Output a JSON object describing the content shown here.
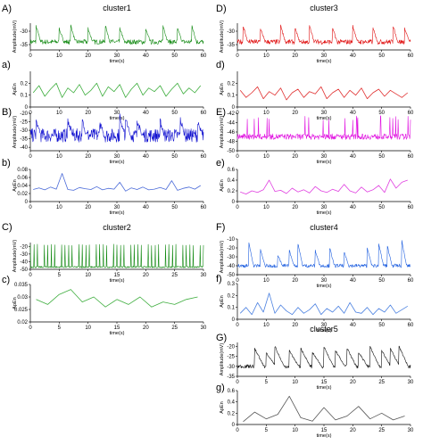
{
  "chart_data": [
    {
      "id": "A",
      "panel_label": "A)",
      "title": "cluster1",
      "type": "line",
      "ylabel": "Amplitude(mV)",
      "xlabel": "time(s)",
      "xlim": [
        0,
        60
      ],
      "xticks": [
        "0",
        "10",
        "20",
        "30",
        "40",
        "50",
        "60"
      ],
      "ylim": [
        -37,
        -27
      ],
      "yticks": [
        "-30",
        "-35"
      ],
      "series": [
        {
          "color": "#138a13",
          "signal": "bursts",
          "baseline": -34,
          "noise": 0.9,
          "spikes": [
            [
              2,
              -28
            ],
            [
              10,
              -29
            ],
            [
              14,
              -28
            ],
            [
              20,
              -29
            ],
            [
              26,
              -28
            ],
            [
              31,
              -29
            ],
            [
              40,
              -29
            ],
            [
              46,
              -28
            ],
            [
              51,
              -29
            ],
            [
              56,
              -28
            ]
          ]
        }
      ]
    },
    {
      "id": "a",
      "panel_label": "a)",
      "type": "line",
      "ylabel": "ApEn",
      "xlabel": "time(s)",
      "xlim": [
        0,
        60
      ],
      "xticks": [
        "0",
        "10",
        "20",
        "30",
        "40",
        "50",
        "60"
      ],
      "ylim": [
        0,
        0.3
      ],
      "yticks": [
        "0",
        "0.1",
        "0.2"
      ],
      "series": [
        {
          "color": "#3fae3f",
          "x": [
            1,
            3,
            5,
            7,
            9,
            11,
            13,
            15,
            17,
            19,
            21,
            23,
            25,
            27,
            29,
            31,
            33,
            35,
            37,
            39,
            41,
            43,
            45,
            47,
            49,
            51,
            53,
            55,
            57,
            59
          ],
          "values": [
            0.12,
            0.18,
            0.09,
            0.15,
            0.2,
            0.08,
            0.16,
            0.12,
            0.19,
            0.1,
            0.14,
            0.2,
            0.09,
            0.17,
            0.13,
            0.19,
            0.08,
            0.15,
            0.2,
            0.1,
            0.16,
            0.13,
            0.18,
            0.09,
            0.15,
            0.2,
            0.11,
            0.16,
            0.12,
            0.18
          ]
        }
      ]
    },
    {
      "id": "B",
      "panel_label": "B)",
      "title": "",
      "type": "line",
      "ylabel": "Amplitude(mV)",
      "xlabel": "time(s)",
      "xlim": [
        0,
        60
      ],
      "xticks": [
        "0",
        "10",
        "20",
        "30",
        "40",
        "50",
        "60"
      ],
      "ylim": [
        -42,
        -20
      ],
      "yticks": [
        "-20",
        "-25",
        "-30",
        "-35",
        "-40"
      ],
      "series": [
        {
          "color": "#1010d0",
          "signal": "bursts",
          "baseline": -33,
          "noise": 4,
          "spikes": [
            [
              2,
              -25
            ],
            [
              13,
              -24
            ],
            [
              18,
              -25
            ],
            [
              24,
              -26
            ],
            [
              31,
              -21
            ],
            [
              33,
              -23
            ],
            [
              37,
              -24
            ],
            [
              45,
              -25
            ],
            [
              52,
              -24
            ],
            [
              58,
              -26
            ]
          ]
        }
      ]
    },
    {
      "id": "b",
      "panel_label": "b)",
      "type": "line",
      "ylabel": "ApEn",
      "xlabel": "time(s)",
      "xlim": [
        0,
        60
      ],
      "xticks": [
        "0",
        "10",
        "20",
        "30",
        "40",
        "50",
        "60"
      ],
      "ylim": [
        0,
        0.08
      ],
      "yticks": [
        "0",
        "0.02",
        "0.04",
        "0.06",
        "0.08"
      ],
      "series": [
        {
          "color": "#4a6ad8",
          "x": [
            1,
            3,
            5,
            7,
            9,
            11,
            13,
            15,
            17,
            19,
            21,
            23,
            25,
            27,
            29,
            31,
            33,
            35,
            37,
            39,
            41,
            43,
            45,
            47,
            49,
            51,
            53,
            55,
            57,
            59
          ],
          "values": [
            0.03,
            0.034,
            0.029,
            0.036,
            0.031,
            0.07,
            0.03,
            0.028,
            0.035,
            0.032,
            0.03,
            0.037,
            0.029,
            0.033,
            0.031,
            0.048,
            0.026,
            0.034,
            0.03,
            0.036,
            0.029,
            0.031,
            0.035,
            0.03,
            0.052,
            0.028,
            0.033,
            0.036,
            0.031,
            0.04
          ]
        }
      ]
    },
    {
      "id": "C",
      "panel_label": "C)",
      "title": "cluster2",
      "type": "line",
      "ylabel": "Amplitude(mV)",
      "xlabel": "time(s)",
      "xlim": [
        0,
        30
      ],
      "xticks": [
        "0",
        "5",
        "10",
        "15",
        "20",
        "25",
        "30"
      ],
      "ylim": [
        -50,
        -15
      ],
      "yticks": [
        "-20",
        "-30",
        "-40",
        "-50"
      ],
      "series": [
        {
          "color": "#138a13",
          "signal": "regular",
          "baseline": -47,
          "noise": 1,
          "period": 0.6,
          "peak": -18
        }
      ]
    },
    {
      "id": "c",
      "panel_label": "c)",
      "type": "line",
      "ylabel": "ApEn",
      "xlabel": "time(s)",
      "xlim": [
        0,
        30
      ],
      "xticks": [
        "0",
        "5",
        "10",
        "15",
        "20",
        "25",
        "30"
      ],
      "ylim": [
        0.02,
        0.035
      ],
      "yticks": [
        "0.02",
        "0.025",
        "0.03",
        "0.035"
      ],
      "series": [
        {
          "color": "#3fae3f",
          "x": [
            1,
            3,
            5,
            7,
            9,
            11,
            13,
            15,
            17,
            19,
            21,
            23,
            25,
            27,
            29
          ],
          "values": [
            0.029,
            0.027,
            0.031,
            0.033,
            0.028,
            0.03,
            0.026,
            0.029,
            0.027,
            0.03,
            0.026,
            0.028,
            0.027,
            0.029,
            0.03
          ]
        }
      ]
    },
    {
      "id": "D",
      "panel_label": "D)",
      "title": "cluster3",
      "type": "line",
      "ylabel": "Amplitude(mV)",
      "xlabel": "time(s)",
      "xlim": [
        0,
        60
      ],
      "xticks": [
        "0",
        "10",
        "20",
        "30",
        "40",
        "50",
        "60"
      ],
      "ylim": [
        -37,
        -27
      ],
      "yticks": [
        "-30",
        "-35"
      ],
      "series": [
        {
          "color": "#e01010",
          "signal": "bursts",
          "baseline": -34,
          "noise": 0.9,
          "spikes": [
            [
              2,
              -28
            ],
            [
              8,
              -29
            ],
            [
              15,
              -28
            ],
            [
              20,
              -29
            ],
            [
              25,
              -28
            ],
            [
              33,
              -29
            ],
            [
              40,
              -28
            ],
            [
              47,
              -29
            ],
            [
              54,
              -28
            ],
            [
              58,
              -29
            ]
          ]
        }
      ]
    },
    {
      "id": "d",
      "panel_label": "d)",
      "type": "line",
      "ylabel": "ApEn",
      "xlabel": "time(s)",
      "xlim": [
        0,
        60
      ],
      "xticks": [
        "0",
        "10",
        "20",
        "30",
        "40",
        "50",
        "60"
      ],
      "ylim": [
        0,
        0.3
      ],
      "yticks": [
        "0",
        "0.1",
        "0.2"
      ],
      "series": [
        {
          "color": "#e03030",
          "x": [
            1,
            3,
            5,
            7,
            9,
            11,
            13,
            15,
            17,
            19,
            21,
            23,
            25,
            27,
            29,
            31,
            33,
            35,
            37,
            39,
            41,
            43,
            45,
            47,
            49,
            51,
            53,
            55,
            57,
            59
          ],
          "values": [
            0.14,
            0.08,
            0.12,
            0.17,
            0.07,
            0.13,
            0.1,
            0.16,
            0.06,
            0.12,
            0.15,
            0.08,
            0.13,
            0.11,
            0.17,
            0.07,
            0.12,
            0.15,
            0.08,
            0.14,
            0.1,
            0.16,
            0.07,
            0.12,
            0.15,
            0.09,
            0.14,
            0.11,
            0.08,
            0.12
          ]
        }
      ]
    },
    {
      "id": "E",
      "panel_label": "E)",
      "title": "",
      "type": "line",
      "ylabel": "Amplitude(mV)",
      "xlabel": "time(s)",
      "xlim": [
        0,
        60
      ],
      "xticks": [
        "0",
        "10",
        "20",
        "30",
        "40",
        "50",
        "60"
      ],
      "ylim": [
        -50,
        -42
      ],
      "yticks": [
        "-42",
        "-44",
        "-46",
        "-48",
        "-50"
      ],
      "series": [
        {
          "color": "#e010e0",
          "signal": "spiky",
          "baseline": -47,
          "noise": 0.6,
          "rate": 3,
          "peak": -43
        }
      ]
    },
    {
      "id": "e",
      "panel_label": "e)",
      "type": "line",
      "ylabel": "ApEn",
      "xlabel": "time(s)",
      "xlim": [
        0,
        60
      ],
      "xticks": [
        "0",
        "10",
        "20",
        "30",
        "40",
        "50",
        "60"
      ],
      "ylim": [
        0,
        0.6
      ],
      "yticks": [
        "0",
        "0.2",
        "0.4",
        "0.6"
      ],
      "series": [
        {
          "color": "#e040e0",
          "x": [
            1,
            3,
            5,
            7,
            9,
            11,
            13,
            15,
            17,
            19,
            21,
            23,
            25,
            27,
            29,
            31,
            33,
            35,
            37,
            39,
            41,
            43,
            45,
            47,
            49,
            51,
            53,
            55,
            57,
            59
          ],
          "values": [
            0.18,
            0.14,
            0.2,
            0.17,
            0.22,
            0.4,
            0.19,
            0.21,
            0.15,
            0.25,
            0.18,
            0.22,
            0.16,
            0.28,
            0.2,
            0.17,
            0.23,
            0.19,
            0.32,
            0.2,
            0.16,
            0.27,
            0.18,
            0.22,
            0.3,
            0.17,
            0.42,
            0.25,
            0.36,
            0.4
          ]
        }
      ]
    },
    {
      "id": "F",
      "panel_label": "F)",
      "title": "cluster4",
      "type": "line",
      "ylabel": "Amplitude(mV)",
      "xlabel": "time(s)",
      "xlim": [
        0,
        60
      ],
      "xticks": [
        "0",
        "10",
        "20",
        "30",
        "40",
        "50",
        "60"
      ],
      "ylim": [
        -50,
        -10
      ],
      "yticks": [
        "-10",
        "-20",
        "-30",
        "-40",
        "-50"
      ],
      "series": [
        {
          "color": "#2060e0",
          "signal": "bursts",
          "baseline": -40,
          "noise": 2,
          "spikes": [
            [
              4,
              -15
            ],
            [
              8,
              -22
            ],
            [
              14,
              -28
            ],
            [
              18,
              -23
            ],
            [
              21,
              -15
            ],
            [
              27,
              -23
            ],
            [
              32,
              -20
            ],
            [
              37,
              -25
            ],
            [
              45,
              -20
            ],
            [
              49,
              -15
            ],
            [
              52,
              -18
            ],
            [
              57,
              -12
            ]
          ]
        }
      ]
    },
    {
      "id": "f",
      "panel_label": "f)",
      "type": "line",
      "ylabel": "ApEn",
      "xlabel": "time(s)",
      "xlim": [
        0,
        60
      ],
      "xticks": [
        "0",
        "10",
        "20",
        "30",
        "40",
        "50",
        "60"
      ],
      "ylim": [
        0,
        0.3
      ],
      "yticks": [
        "0",
        "0.1",
        "0.2",
        "0.3"
      ],
      "series": [
        {
          "color": "#4a80e0",
          "x": [
            1,
            3,
            5,
            7,
            9,
            11,
            13,
            15,
            17,
            19,
            21,
            23,
            25,
            27,
            29,
            31,
            33,
            35,
            37,
            39,
            41,
            43,
            45,
            47,
            49,
            51,
            53,
            55,
            57,
            59
          ],
          "values": [
            0.05,
            0.1,
            0.04,
            0.14,
            0.06,
            0.22,
            0.05,
            0.12,
            0.07,
            0.04,
            0.1,
            0.05,
            0.08,
            0.13,
            0.04,
            0.09,
            0.06,
            0.11,
            0.05,
            0.14,
            0.06,
            0.05,
            0.1,
            0.04,
            0.09,
            0.06,
            0.12,
            0.05,
            0.08,
            0.11
          ]
        }
      ]
    },
    {
      "id": "G",
      "panel_label": "G)",
      "title": "cluster5",
      "type": "line",
      "ylabel": "Amplitude(mV)",
      "xlabel": "time(s)",
      "xlim": [
        0,
        30
      ],
      "xticks": [
        "0",
        "5",
        "10",
        "15",
        "20",
        "25",
        "30"
      ],
      "ylim": [
        -35,
        -18
      ],
      "yticks": [
        "-20",
        "-25",
        "-30",
        "-35"
      ],
      "series": [
        {
          "color": "#111111",
          "signal": "bursts",
          "baseline": -30,
          "noise": 0.9,
          "spikes": [
            [
              3,
              -21
            ],
            [
              5,
              -23
            ],
            [
              6.5,
              -20
            ],
            [
              9,
              -22
            ],
            [
              11,
              -21
            ],
            [
              13,
              -23
            ],
            [
              15,
              -20
            ],
            [
              17,
              -22
            ],
            [
              19,
              -21
            ],
            [
              21,
              -23
            ],
            [
              23,
              -20
            ],
            [
              25,
              -22
            ],
            [
              26.5,
              -21
            ],
            [
              28,
              -20
            ]
          ]
        }
      ]
    },
    {
      "id": "g",
      "panel_label": "g)",
      "type": "line",
      "ylabel": "ApEn",
      "xlabel": "time(s)",
      "xlim": [
        0,
        30
      ],
      "xticks": [
        "0",
        "5",
        "10",
        "15",
        "20",
        "25",
        "30"
      ],
      "ylim": [
        0,
        0.6
      ],
      "yticks": [
        "0",
        "0.2",
        "0.4",
        "0.6"
      ],
      "series": [
        {
          "color": "#555555",
          "x": [
            1,
            3,
            5,
            7,
            9,
            11,
            13,
            15,
            17,
            19,
            21,
            23,
            25,
            27,
            29
          ],
          "values": [
            0.05,
            0.22,
            0.1,
            0.18,
            0.5,
            0.12,
            0.06,
            0.3,
            0.08,
            0.15,
            0.32,
            0.1,
            0.2,
            0.08,
            0.15
          ]
        }
      ]
    }
  ]
}
